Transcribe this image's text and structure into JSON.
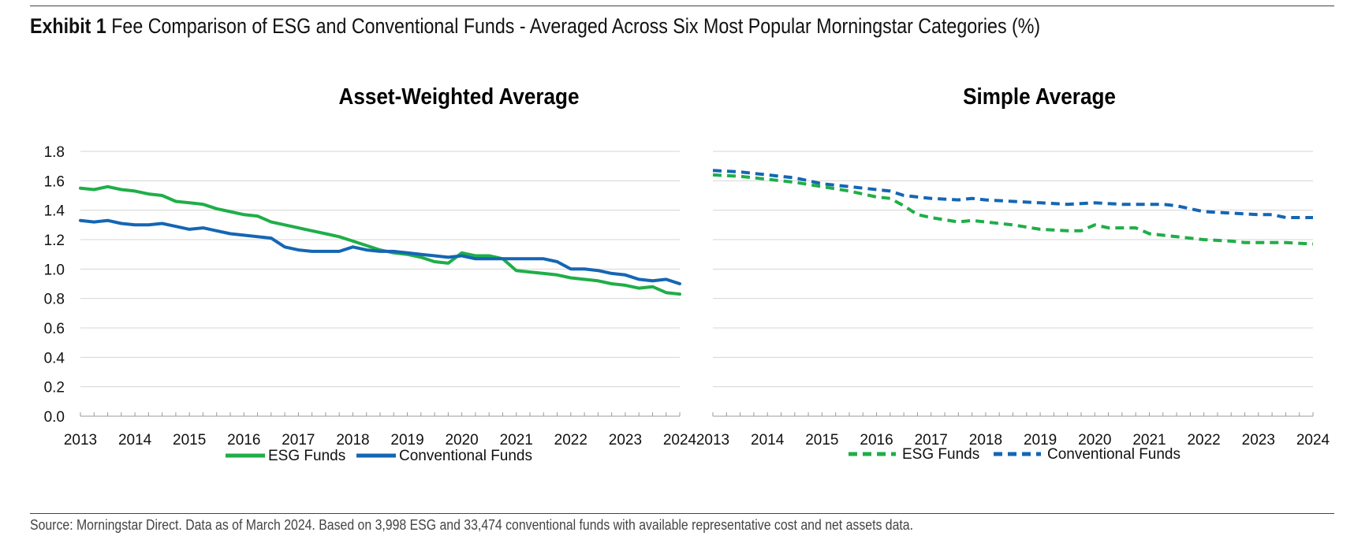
{
  "header": {
    "exhibit_label": "Exhibit 1",
    "title": "Fee Comparison of ESG and Conventional Funds - Averaged Across Six Most Popular Morningstar Categories (%)"
  },
  "footer": {
    "source": "Source: Morningstar Direct. Data as of March 2024. Based on 3,998 ESG and 33,474 conventional funds with available representative cost and net assets data."
  },
  "colors": {
    "esg": "#1fae48",
    "conventional": "#1466b4",
    "grid": "#d4d4d4",
    "axis": "#9a9a9a"
  },
  "chart_data": [
    {
      "type": "line",
      "title": "Asset-Weighted Average",
      "xlabel": "",
      "ylabel": "",
      "ylim": [
        0,
        1.8
      ],
      "yticks": [
        "0.0",
        "0.2",
        "0.4",
        "0.6",
        "0.8",
        "1.0",
        "1.2",
        "1.4",
        "1.6",
        "1.8"
      ],
      "xlim": [
        2013,
        2024
      ],
      "xticks": [
        "2013",
        "2014",
        "2015",
        "2016",
        "2017",
        "2018",
        "2019",
        "2020",
        "2021",
        "2022",
        "2023",
        "2024"
      ],
      "legend": "bottom",
      "series": [
        {
          "name": "ESG Funds",
          "style": "solid",
          "color_key": "esg",
          "x": [
            2013.0,
            2013.25,
            2013.5,
            2013.75,
            2014.0,
            2014.25,
            2014.5,
            2014.75,
            2015.0,
            2015.25,
            2015.5,
            2015.75,
            2016.0,
            2016.25,
            2016.5,
            2016.75,
            2017.0,
            2017.25,
            2017.5,
            2017.75,
            2018.0,
            2018.25,
            2018.5,
            2018.75,
            2019.0,
            2019.25,
            2019.5,
            2019.75,
            2020.0,
            2020.25,
            2020.5,
            2020.75,
            2021.0,
            2021.25,
            2021.5,
            2021.75,
            2022.0,
            2022.25,
            2022.5,
            2022.75,
            2023.0,
            2023.25,
            2023.5,
            2023.75,
            2024.0
          ],
          "y": [
            1.55,
            1.54,
            1.56,
            1.54,
            1.53,
            1.51,
            1.5,
            1.46,
            1.45,
            1.44,
            1.41,
            1.39,
            1.37,
            1.36,
            1.32,
            1.3,
            1.28,
            1.26,
            1.24,
            1.22,
            1.19,
            1.16,
            1.13,
            1.11,
            1.1,
            1.08,
            1.05,
            1.04,
            1.11,
            1.09,
            1.09,
            1.07,
            0.99,
            0.98,
            0.97,
            0.96,
            0.94,
            0.93,
            0.92,
            0.9,
            0.89,
            0.87,
            0.88,
            0.84,
            0.83
          ]
        },
        {
          "name": "Conventional Funds",
          "style": "solid",
          "color_key": "conventional",
          "x": [
            2013.0,
            2013.25,
            2013.5,
            2013.75,
            2014.0,
            2014.25,
            2014.5,
            2014.75,
            2015.0,
            2015.25,
            2015.5,
            2015.75,
            2016.0,
            2016.25,
            2016.5,
            2016.75,
            2017.0,
            2017.25,
            2017.5,
            2017.75,
            2018.0,
            2018.25,
            2018.5,
            2018.75,
            2019.0,
            2019.25,
            2019.5,
            2019.75,
            2020.0,
            2020.25,
            2020.5,
            2020.75,
            2021.0,
            2021.25,
            2021.5,
            2021.75,
            2022.0,
            2022.25,
            2022.5,
            2022.75,
            2023.0,
            2023.25,
            2023.5,
            2023.75,
            2024.0
          ],
          "y": [
            1.33,
            1.32,
            1.33,
            1.31,
            1.3,
            1.3,
            1.31,
            1.29,
            1.27,
            1.28,
            1.26,
            1.24,
            1.23,
            1.22,
            1.21,
            1.15,
            1.13,
            1.12,
            1.12,
            1.12,
            1.15,
            1.13,
            1.12,
            1.12,
            1.11,
            1.1,
            1.09,
            1.08,
            1.09,
            1.07,
            1.07,
            1.07,
            1.07,
            1.07,
            1.07,
            1.05,
            1.0,
            1.0,
            0.99,
            0.97,
            0.96,
            0.93,
            0.92,
            0.93,
            0.9
          ]
        }
      ]
    },
    {
      "type": "line",
      "title": "Simple Average",
      "xlabel": "",
      "ylabel": "",
      "ylim": [
        0,
        1.8
      ],
      "xlim": [
        2013,
        2024
      ],
      "xticks": [
        "2013",
        "2014",
        "2015",
        "2016",
        "2017",
        "2018",
        "2019",
        "2020",
        "2021",
        "2022",
        "2023",
        "2024"
      ],
      "legend": "bottom",
      "series": [
        {
          "name": "ESG Funds",
          "style": "dashed",
          "color_key": "esg",
          "x": [
            2013.0,
            2013.5,
            2014.0,
            2014.5,
            2015.0,
            2015.5,
            2016.0,
            2016.25,
            2016.5,
            2016.75,
            2017.0,
            2017.5,
            2017.75,
            2018.0,
            2018.5,
            2019.0,
            2019.5,
            2019.75,
            2020.0,
            2020.25,
            2020.5,
            2020.75,
            2021.0,
            2021.5,
            2022.0,
            2022.5,
            2022.75,
            2023.0,
            2023.5,
            2024.0
          ],
          "y": [
            1.64,
            1.63,
            1.61,
            1.59,
            1.56,
            1.53,
            1.49,
            1.48,
            1.43,
            1.37,
            1.35,
            1.32,
            1.33,
            1.32,
            1.3,
            1.27,
            1.26,
            1.26,
            1.3,
            1.28,
            1.28,
            1.28,
            1.24,
            1.22,
            1.2,
            1.19,
            1.18,
            1.18,
            1.18,
            1.17
          ]
        },
        {
          "name": "Conventional Funds",
          "style": "dashed",
          "color_key": "conventional",
          "x": [
            2013.0,
            2013.5,
            2014.0,
            2014.5,
            2015.0,
            2015.5,
            2016.0,
            2016.25,
            2016.5,
            2016.75,
            2017.0,
            2017.5,
            2017.75,
            2018.0,
            2018.5,
            2019.0,
            2019.5,
            2020.0,
            2020.5,
            2021.0,
            2021.25,
            2021.5,
            2021.75,
            2022.0,
            2022.5,
            2023.0,
            2023.25,
            2023.5,
            2024.0
          ],
          "y": [
            1.67,
            1.66,
            1.64,
            1.62,
            1.58,
            1.56,
            1.54,
            1.53,
            1.5,
            1.49,
            1.48,
            1.47,
            1.48,
            1.47,
            1.46,
            1.45,
            1.44,
            1.45,
            1.44,
            1.44,
            1.44,
            1.43,
            1.41,
            1.39,
            1.38,
            1.37,
            1.37,
            1.35,
            1.35
          ]
        }
      ]
    }
  ]
}
